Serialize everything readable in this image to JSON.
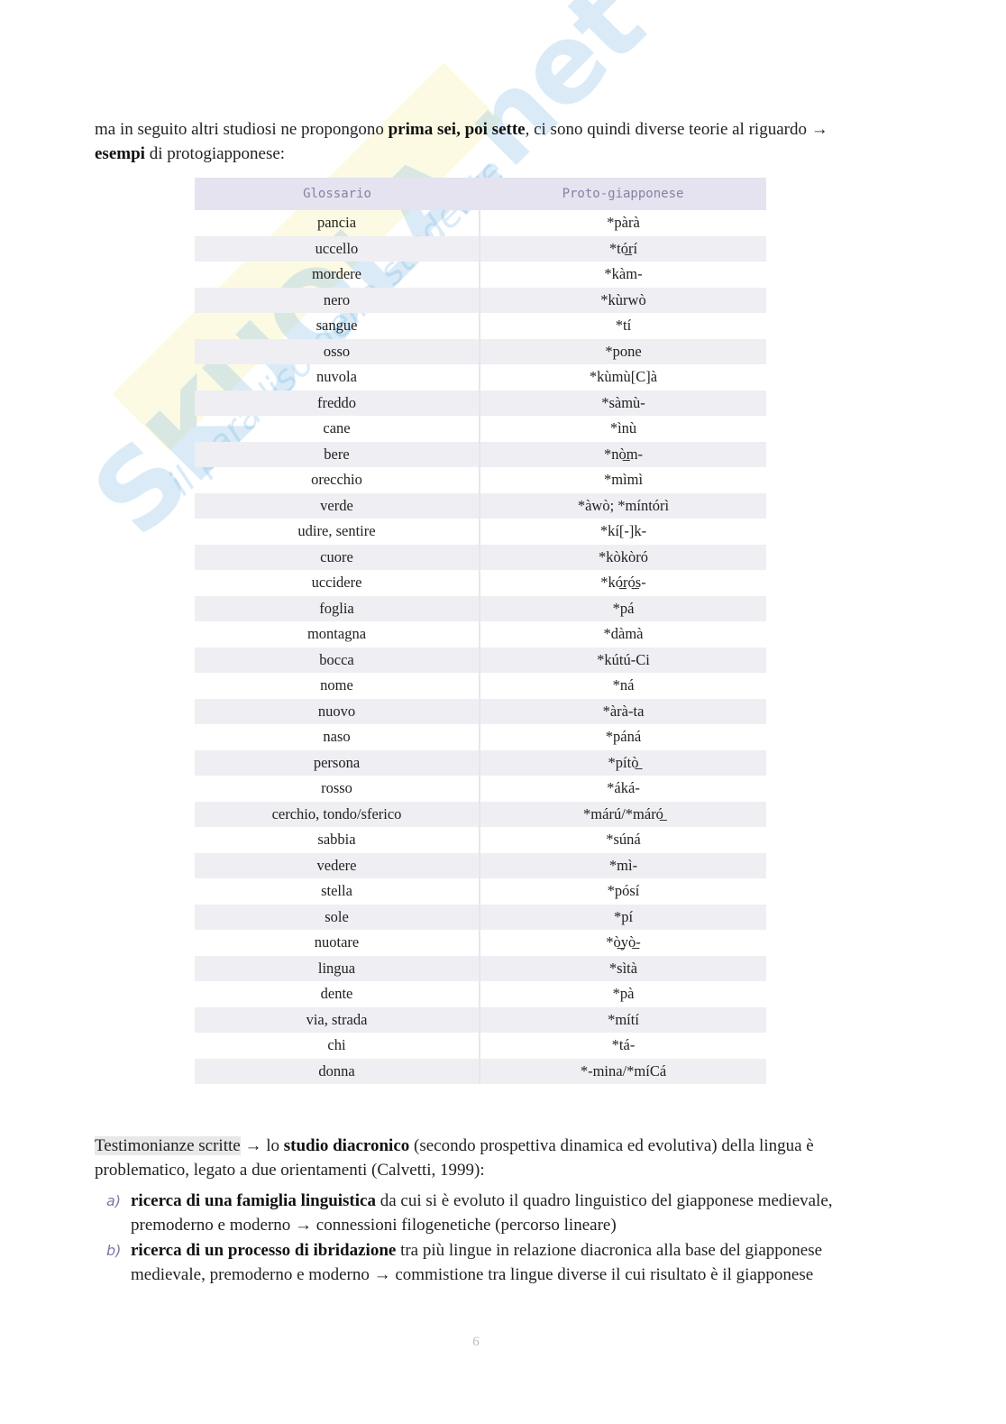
{
  "watermark": {
    "logo": "SKUOLA.net",
    "tagline": "il paradiso dello studente"
  },
  "intro": {
    "t1": "ma in seguito altri studiosi ne propongono ",
    "b1": "prima sei",
    "t2": ", ",
    "b2": "poi sette",
    "t3": ", ci sono quindi diverse teorie al riguardo → ",
    "b3": "esempi",
    "t4": " di protogiapponese:"
  },
  "table": {
    "headers": [
      "Glossario",
      "Proto-giapponese"
    ],
    "rows": [
      [
        "pancia",
        "*pàrà"
      ],
      [
        "uccello",
        "*tó̲rí"
      ],
      [
        "mordere",
        "*kàm-"
      ],
      [
        "nero",
        "*kùrwò"
      ],
      [
        "sangue",
        "*tí"
      ],
      [
        "osso",
        "*pone"
      ],
      [
        "nuvola",
        "*kùmù[C]à"
      ],
      [
        "freddo",
        "*sàmù-"
      ],
      [
        "cane",
        "*ìnù"
      ],
      [
        "bere",
        "*nò̲m-"
      ],
      [
        "orecchio",
        "*mìmì"
      ],
      [
        "verde",
        "*àwò; *míntórì"
      ],
      [
        "udire, sentire",
        "*kí[-]k-"
      ],
      [
        "cuore",
        "*kòkòró"
      ],
      [
        "uccidere",
        "*kó̲ró̲s-"
      ],
      [
        "foglia",
        "*pá"
      ],
      [
        "montagna",
        "*dàmà"
      ],
      [
        "bocca",
        "*kútú-Ci"
      ],
      [
        "nome",
        "*ná"
      ],
      [
        "nuovo",
        "*àrà-ta"
      ],
      [
        "naso",
        "*páná"
      ],
      [
        "persona",
        "*pítò̲"
      ],
      [
        "rosso",
        "*áká-"
      ],
      [
        "cerchio, tondo/sferico",
        "*márú/*máró̲"
      ],
      [
        "sabbia",
        "*súná"
      ],
      [
        "vedere",
        "*mì-"
      ],
      [
        "stella",
        "*pósí"
      ],
      [
        "sole",
        "*pí"
      ],
      [
        "nuotare",
        "*ò̲yò̲-"
      ],
      [
        "lingua",
        "*sìtà"
      ],
      [
        "dente",
        "*pà"
      ],
      [
        "via, strada",
        "*mítí"
      ],
      [
        "chi",
        "*tá-"
      ],
      [
        "donna",
        "*-mina/*míCá"
      ]
    ]
  },
  "para2": {
    "hl": "Testimonianze scritte",
    "t1": " → lo ",
    "b1": "studio diacronico",
    "t2": " (secondo prospettiva dinamica ed evolutiva) della lingua è problematico, legato a due orientamenti (Calvetti, 1999):"
  },
  "list": [
    {
      "marker": "a)",
      "bold": "ricerca di una famiglia linguistica",
      "text": " da cui si è evoluto il quadro linguistico del giapponese medievale, premoderno e moderno → connessioni filogenetiche (percorso lineare)"
    },
    {
      "marker": "b)",
      "bold": "ricerca di un processo di ibridazione",
      "text": " tra più lingue in relazione diacronica alla base del giapponese medievale, premoderno e moderno → commistione tra lingue diverse il cui risultato è il giapponese"
    }
  ],
  "page_number": "6"
}
